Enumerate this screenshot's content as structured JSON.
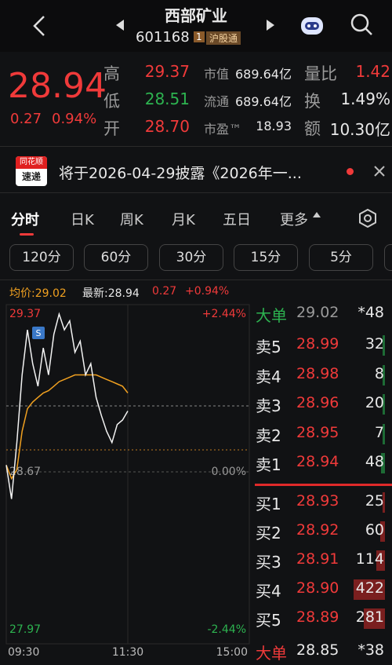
{
  "header": {
    "title": "西部矿业",
    "code": "601168",
    "badge": "1",
    "market": "沪股通"
  },
  "quote": {
    "price": "28.94",
    "change": "0.27",
    "pct": "0.94%",
    "stats": [
      {
        "label": "高",
        "value": "29.37"
      },
      {
        "label": "低",
        "value": "28.51"
      },
      {
        "label": "开",
        "value": "28.70"
      }
    ],
    "metrics": [
      {
        "label": "市值",
        "value": "689.64亿"
      },
      {
        "label": "流通",
        "value": "689.64亿"
      },
      {
        "label": "市盈™",
        "value": "18.93"
      }
    ],
    "extra": [
      {
        "label": "量比",
        "value": "1.42"
      },
      {
        "label": "换",
        "value": "1.49%"
      },
      {
        "label": "额",
        "value": "10.30亿"
      }
    ]
  },
  "news": {
    "logo_top": "同花顺",
    "logo_bottom": "速递",
    "text": "将于2026-04-29披露《2026年一..."
  },
  "tabs": [
    "分时",
    "日K",
    "周K",
    "月K",
    "五日",
    "更多"
  ],
  "intervals": [
    "120分",
    "60分",
    "30分",
    "15分",
    "5分"
  ],
  "info": {
    "avg": "均价:29.02",
    "latest": "最新:28.94",
    "change": "0.27",
    "pct": "+0.94%"
  },
  "intraday": {
    "signal": "S",
    "ylim": [
      27.97,
      29.37
    ],
    "yticks": [
      29.37,
      28.67,
      27.97
    ],
    "pct_ticks": [
      "+2.44%",
      "0.00%",
      "-2.44%"
    ],
    "xticks": [
      "09:30",
      "11:30",
      "15:00"
    ],
    "price": [
      28.7,
      28.55,
      28.8,
      29.1,
      29.3,
      29.15,
      29.05,
      29.22,
      29.1,
      29.28,
      29.37,
      29.3,
      29.34,
      29.2,
      29.25,
      29.1,
      29.15,
      29.0,
      28.92,
      28.85,
      28.8,
      28.88,
      28.9,
      28.94
    ],
    "avg": [
      28.7,
      28.64,
      28.68,
      28.85,
      28.95,
      28.98,
      29.0,
      29.02,
      29.03,
      29.05,
      29.07,
      29.08,
      29.09,
      29.1,
      29.1,
      29.1,
      29.1,
      29.1,
      29.09,
      29.08,
      29.07,
      29.06,
      29.05,
      29.02
    ]
  },
  "order_book": {
    "top": {
      "label": "大单",
      "price": "29.02",
      "volume": "*48"
    },
    "asks": [
      {
        "label": "卖5",
        "price": "28.99",
        "volume": 32
      },
      {
        "label": "卖4",
        "price": "28.98",
        "volume": 8
      },
      {
        "label": "卖3",
        "price": "28.96",
        "volume": 20
      },
      {
        "label": "卖2",
        "price": "28.95",
        "volume": 7
      },
      {
        "label": "卖1",
        "price": "28.94",
        "volume": 48
      }
    ],
    "bids": [
      {
        "label": "买1",
        "price": "28.93",
        "volume": 25
      },
      {
        "label": "买2",
        "price": "28.92",
        "volume": 60
      },
      {
        "label": "买3",
        "price": "28.91",
        "volume": 114
      },
      {
        "label": "买4",
        "price": "28.90",
        "volume": 422
      },
      {
        "label": "买5",
        "price": "28.89",
        "volume": 281
      }
    ],
    "bottom": {
      "label": "大单",
      "price": "28.85",
      "volume": "*38"
    }
  }
}
